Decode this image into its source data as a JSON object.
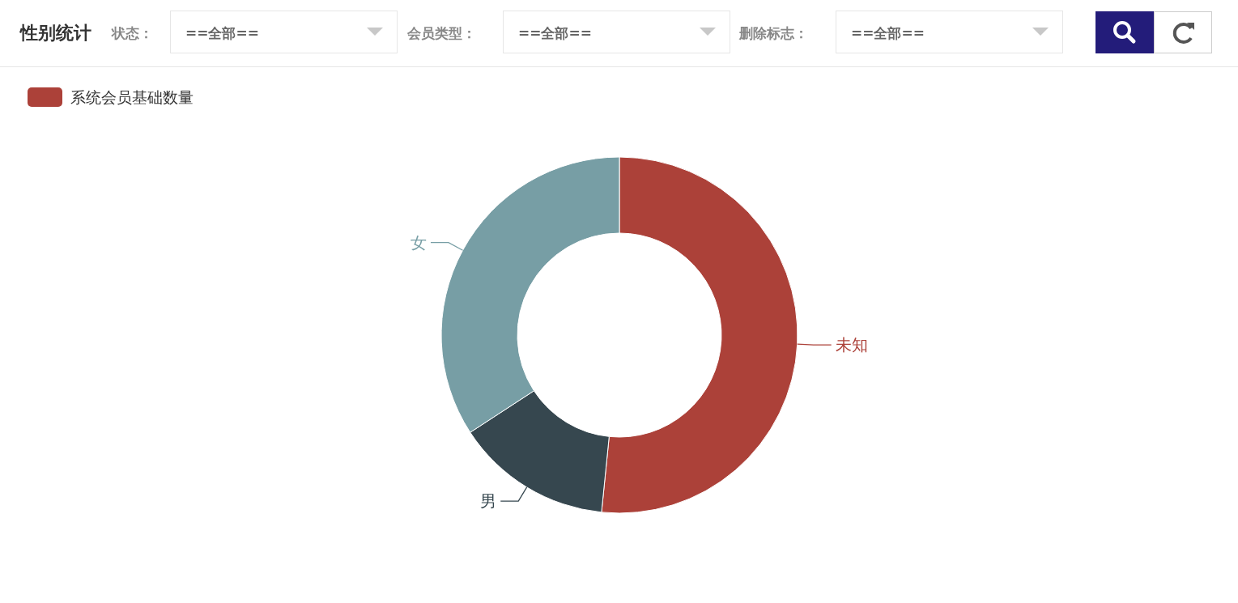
{
  "chart_data": {
    "type": "donut",
    "title": "性别统计",
    "annotations": [
      "状态：",
      "==全部==",
      "会员类型：",
      "==全部==",
      "删除标志：",
      "==全部=="
    ],
    "categories": [
      "未知",
      "男",
      "女"
    ],
    "colors": [
      "#ac4139",
      "#36474f",
      "#779ea5"
    ],
    "series": [
      {
        "name": "系统会员基础数量",
        "values": [
          51.6,
          14.2,
          34.2
        ]
      }
    ],
    "legend": "top left"
  }
}
